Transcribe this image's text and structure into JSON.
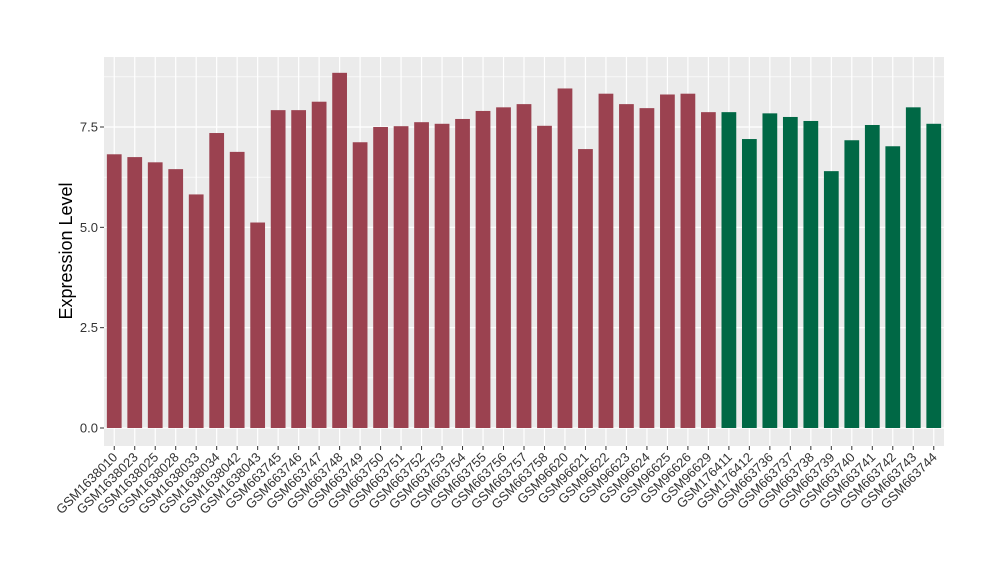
{
  "chart_data": {
    "type": "bar",
    "title": "",
    "xlabel": "",
    "ylabel": "Expression Level",
    "ylim": [
      0,
      9.05
    ],
    "y_ticks": [
      0.0,
      2.5,
      5.0,
      7.5
    ],
    "y_tick_labels": [
      "0.0",
      "2.5",
      "5.0",
      "7.5"
    ],
    "grid": true,
    "legend": "none",
    "colors": {
      "group1": "#9b4250",
      "group2": "#006845",
      "panel_bg": "#ebebeb",
      "grid": "#ffffff"
    },
    "categories": [
      "GSM1638010",
      "GSM1638023",
      "GSM1638025",
      "GSM1638028",
      "GSM1638033",
      "GSM1638034",
      "GSM1638042",
      "GSM1638043",
      "GSM663745",
      "GSM663746",
      "GSM663747",
      "GSM663748",
      "GSM663749",
      "GSM663750",
      "GSM663751",
      "GSM663752",
      "GSM663753",
      "GSM663754",
      "GSM663755",
      "GSM663756",
      "GSM663757",
      "GSM663758",
      "GSM96620",
      "GSM96621",
      "GSM96622",
      "GSM96623",
      "GSM96624",
      "GSM96625",
      "GSM96626",
      "GSM96629",
      "GSM176411",
      "GSM176412",
      "GSM663736",
      "GSM663737",
      "GSM663738",
      "GSM663739",
      "GSM663740",
      "GSM663741",
      "GSM663742",
      "GSM663743",
      "GSM663744"
    ],
    "values": [
      6.82,
      6.75,
      6.62,
      6.45,
      5.82,
      7.35,
      6.88,
      5.12,
      7.92,
      7.92,
      8.13,
      8.85,
      7.12,
      7.5,
      7.52,
      7.62,
      7.58,
      7.7,
      7.9,
      7.99,
      8.07,
      7.53,
      8.46,
      6.95,
      8.33,
      8.07,
      7.97,
      8.31,
      8.33,
      7.87,
      7.87,
      7.2,
      7.84,
      7.75,
      7.65,
      6.4,
      7.17,
      7.55,
      7.02,
      7.99,
      7.58
    ],
    "groups": [
      1,
      1,
      1,
      1,
      1,
      1,
      1,
      1,
      1,
      1,
      1,
      1,
      1,
      1,
      1,
      1,
      1,
      1,
      1,
      1,
      1,
      1,
      1,
      1,
      1,
      1,
      1,
      1,
      1,
      1,
      2,
      2,
      2,
      2,
      2,
      2,
      2,
      2,
      2,
      2,
      2
    ]
  }
}
